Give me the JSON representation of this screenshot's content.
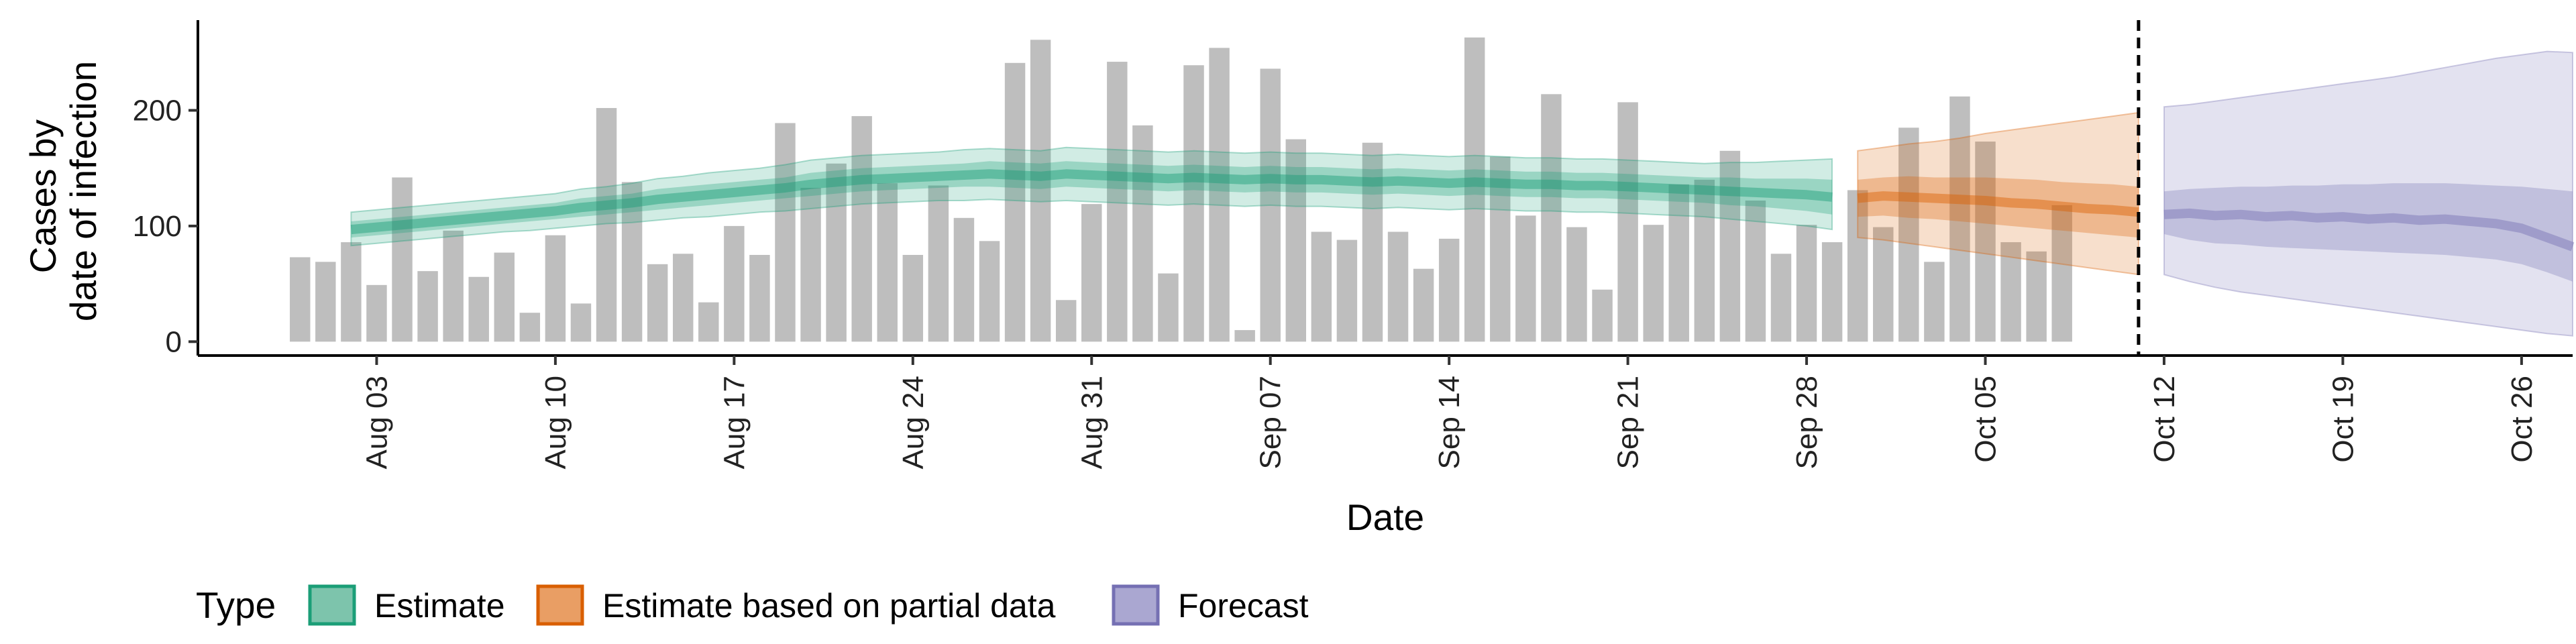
{
  "chart_data": {
    "type": "bar",
    "xlabel": "Date",
    "ylabel_lines": [
      "Cases by",
      "date of infection"
    ],
    "ylim": [
      -12,
      278
    ],
    "y_ticks": [
      0,
      100,
      200
    ],
    "x_range": [
      "2024-07-27",
      "2024-10-28"
    ],
    "x_ticks": [
      {
        "date": "2024-08-03",
        "label": "Aug 03"
      },
      {
        "date": "2024-08-10",
        "label": "Aug 10"
      },
      {
        "date": "2024-08-17",
        "label": "Aug 17"
      },
      {
        "date": "2024-08-24",
        "label": "Aug 24"
      },
      {
        "date": "2024-08-31",
        "label": "Aug 31"
      },
      {
        "date": "2024-09-07",
        "label": "Sep 07"
      },
      {
        "date": "2024-09-14",
        "label": "Sep 14"
      },
      {
        "date": "2024-09-21",
        "label": "Sep 21"
      },
      {
        "date": "2024-09-28",
        "label": "Sep 28"
      },
      {
        "date": "2024-10-05",
        "label": "Oct 05"
      },
      {
        "date": "2024-10-12",
        "label": "Oct 12"
      },
      {
        "date": "2024-10-19",
        "label": "Oct 19"
      },
      {
        "date": "2024-10-26",
        "label": "Oct 26"
      }
    ],
    "cutoff_date": "2024-10-11",
    "bar_color": "#bebebe",
    "bars": {
      "start_date": "2024-07-31",
      "values": [
        73,
        69,
        86,
        49,
        142,
        61,
        96,
        56,
        77,
        25,
        92,
        33,
        202,
        138,
        67,
        76,
        34,
        100,
        75,
        189,
        133,
        154,
        195,
        137,
        75,
        135,
        107,
        87,
        241,
        261,
        36,
        119,
        242,
        187,
        59,
        239,
        254,
        10,
        236,
        175,
        95,
        88,
        172,
        95,
        63,
        89,
        263,
        160,
        109,
        214,
        99,
        45,
        207,
        101,
        136,
        140,
        165,
        122,
        76,
        101,
        86,
        131,
        99,
        185,
        69,
        212,
        173,
        86,
        78,
        118
      ]
    },
    "series": [
      {
        "name": "Estimate",
        "color": "#1b9e77",
        "start_date": "2024-08-02",
        "median": [
          97,
          99,
          101,
          103,
          105,
          107,
          109,
          111,
          113,
          116,
          118,
          120,
          123,
          125,
          127,
          129,
          131,
          133,
          136,
          138,
          140,
          141,
          142,
          143,
          144,
          145,
          144,
          143,
          145,
          144,
          143,
          142,
          141,
          142,
          141,
          140,
          141,
          140,
          140,
          139,
          138,
          139,
          138,
          137,
          138,
          137,
          136,
          136,
          135,
          135,
          134,
          133,
          132,
          131,
          130,
          129,
          128,
          127,
          125
        ],
        "inner": [
          [
            90,
            104
          ],
          [
            92,
            106
          ],
          [
            94,
            108
          ],
          [
            96,
            110
          ],
          [
            98,
            112
          ],
          [
            100,
            114
          ],
          [
            102,
            116
          ],
          [
            104,
            118
          ],
          [
            106,
            120
          ],
          [
            108,
            124
          ],
          [
            110,
            126
          ],
          [
            112,
            128
          ],
          [
            114,
            132
          ],
          [
            116,
            134
          ],
          [
            118,
            136
          ],
          [
            120,
            138
          ],
          [
            122,
            140
          ],
          [
            124,
            142
          ],
          [
            126,
            146
          ],
          [
            128,
            148
          ],
          [
            130,
            150
          ],
          [
            131,
            151
          ],
          [
            132,
            152
          ],
          [
            133,
            153
          ],
          [
            134,
            154
          ],
          [
            134,
            156
          ],
          [
            133,
            155
          ],
          [
            132,
            154
          ],
          [
            134,
            156
          ],
          [
            133,
            155
          ],
          [
            132,
            154
          ],
          [
            131,
            153
          ],
          [
            130,
            152
          ],
          [
            131,
            153
          ],
          [
            130,
            152
          ],
          [
            129,
            151
          ],
          [
            130,
            152
          ],
          [
            129,
            151
          ],
          [
            129,
            151
          ],
          [
            128,
            150
          ],
          [
            127,
            149
          ],
          [
            128,
            150
          ],
          [
            127,
            149
          ],
          [
            126,
            148
          ],
          [
            127,
            149
          ],
          [
            126,
            148
          ],
          [
            125,
            147
          ],
          [
            125,
            147
          ],
          [
            124,
            146
          ],
          [
            124,
            146
          ],
          [
            123,
            145
          ],
          [
            122,
            144
          ],
          [
            121,
            143
          ],
          [
            120,
            142
          ],
          [
            118,
            142
          ],
          [
            117,
            141
          ],
          [
            115,
            141
          ],
          [
            113,
            141
          ],
          [
            110,
            140
          ]
        ],
        "outer": [
          [
            83,
            112
          ],
          [
            85,
            114
          ],
          [
            87,
            116
          ],
          [
            89,
            118
          ],
          [
            91,
            120
          ],
          [
            93,
            122
          ],
          [
            95,
            124
          ],
          [
            96,
            126
          ],
          [
            98,
            128
          ],
          [
            100,
            132
          ],
          [
            102,
            134
          ],
          [
            103,
            137
          ],
          [
            105,
            141
          ],
          [
            107,
            143
          ],
          [
            108,
            146
          ],
          [
            110,
            148
          ],
          [
            112,
            150
          ],
          [
            113,
            153
          ],
          [
            115,
            157
          ],
          [
            117,
            159
          ],
          [
            119,
            161
          ],
          [
            120,
            162
          ],
          [
            121,
            163
          ],
          [
            122,
            164
          ],
          [
            122,
            166
          ],
          [
            123,
            167
          ],
          [
            122,
            166
          ],
          [
            121,
            165
          ],
          [
            122,
            168
          ],
          [
            121,
            167
          ],
          [
            120,
            166
          ],
          [
            119,
            165
          ],
          [
            118,
            164
          ],
          [
            119,
            165
          ],
          [
            118,
            164
          ],
          [
            117,
            163
          ],
          [
            118,
            164
          ],
          [
            117,
            163
          ],
          [
            117,
            163
          ],
          [
            116,
            162
          ],
          [
            115,
            161
          ],
          [
            116,
            162
          ],
          [
            115,
            161
          ],
          [
            114,
            160
          ],
          [
            115,
            161
          ],
          [
            114,
            160
          ],
          [
            113,
            159
          ],
          [
            113,
            159
          ],
          [
            112,
            158
          ],
          [
            112,
            158
          ],
          [
            111,
            157
          ],
          [
            110,
            156
          ],
          [
            109,
            155
          ],
          [
            108,
            154
          ],
          [
            106,
            155
          ],
          [
            104,
            155
          ],
          [
            102,
            156
          ],
          [
            100,
            157
          ],
          [
            97,
            158
          ]
        ]
      },
      {
        "name": "Estimate based on partial data",
        "color": "#d95f02",
        "start_date": "2024-09-30",
        "median": [
          124,
          126,
          125,
          124,
          123,
          122,
          120,
          119,
          117,
          115,
          114,
          112
        ],
        "inner": [
          [
            108,
            140
          ],
          [
            109,
            142
          ],
          [
            107,
            143
          ],
          [
            106,
            142
          ],
          [
            104,
            142
          ],
          [
            102,
            142
          ],
          [
            100,
            141
          ],
          [
            98,
            140
          ],
          [
            96,
            138
          ],
          [
            94,
            137
          ],
          [
            92,
            136
          ],
          [
            90,
            134
          ]
        ],
        "outer": [
          [
            90,
            165
          ],
          [
            88,
            168
          ],
          [
            85,
            171
          ],
          [
            82,
            173
          ],
          [
            79,
            176
          ],
          [
            76,
            180
          ],
          [
            73,
            183
          ],
          [
            70,
            186
          ],
          [
            67,
            189
          ],
          [
            64,
            192
          ],
          [
            61,
            195
          ],
          [
            58,
            198
          ]
        ]
      },
      {
        "name": "Forecast",
        "color": "#7570b3",
        "start_date": "2024-10-12",
        "median": [
          110,
          111,
          109,
          110,
          108,
          109,
          107,
          108,
          106,
          107,
          105,
          106,
          104,
          102,
          98,
          90,
          82
        ],
        "inner": [
          [
            93,
            130
          ],
          [
            88,
            132
          ],
          [
            85,
            133
          ],
          [
            84,
            134
          ],
          [
            82,
            134
          ],
          [
            81,
            135
          ],
          [
            80,
            135
          ],
          [
            79,
            136
          ],
          [
            78,
            136
          ],
          [
            77,
            137
          ],
          [
            76,
            137
          ],
          [
            75,
            137
          ],
          [
            73,
            136
          ],
          [
            71,
            135
          ],
          [
            67,
            134
          ],
          [
            60,
            132
          ],
          [
            52,
            130
          ]
        ],
        "outer": [
          [
            58,
            203
          ],
          [
            52,
            205
          ],
          [
            47,
            208
          ],
          [
            43,
            211
          ],
          [
            40,
            214
          ],
          [
            37,
            217
          ],
          [
            34,
            220
          ],
          [
            31,
            223
          ],
          [
            28,
            226
          ],
          [
            25,
            229
          ],
          [
            22,
            233
          ],
          [
            19,
            237
          ],
          [
            16,
            241
          ],
          [
            13,
            245
          ],
          [
            10,
            248
          ],
          [
            7,
            251
          ],
          [
            5,
            250
          ]
        ]
      }
    ],
    "legend": {
      "title": "Type",
      "position": "bottom",
      "items": [
        {
          "label": "Estimate",
          "fill": "#7dc4ac",
          "stroke": "#1b9e77"
        },
        {
          "label": "Estimate based on partial data",
          "fill": "#e99e64",
          "stroke": "#d95f02"
        },
        {
          "label": "Forecast",
          "fill": "#aaa7d1",
          "stroke": "#7570b3"
        }
      ]
    }
  }
}
